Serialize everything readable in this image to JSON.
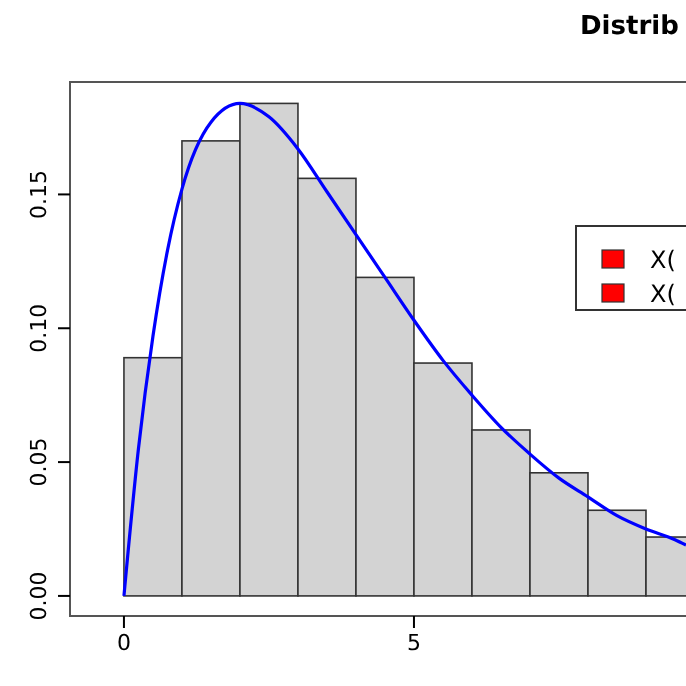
{
  "chart_data": {
    "type": "histogram",
    "title": "Distrib",
    "bins": [
      0,
      1,
      2,
      3,
      4,
      5,
      6,
      7,
      8,
      9,
      10
    ],
    "values": [
      0.089,
      0.17,
      0.184,
      0.156,
      0.119,
      0.087,
      0.062,
      0.046,
      0.032,
      0.022
    ],
    "color": "#d3d3d3",
    "series": [
      {
        "type": "line",
        "color": "#0000ff",
        "x": [
          0,
          0.25,
          0.5,
          0.75,
          1,
          1.5,
          2,
          2.5,
          3,
          3.5,
          4,
          4.5,
          5,
          5.5,
          6,
          6.5,
          7,
          7.5,
          8,
          8.5,
          9,
          9.5,
          9.69
        ],
        "values": [
          0,
          0.055,
          0.097,
          0.129,
          0.152,
          0.177,
          0.184,
          0.179,
          0.167,
          0.151,
          0.135,
          0.119,
          0.103,
          0.088,
          0.075,
          0.063,
          0.053,
          0.044,
          0.037,
          0.03,
          0.025,
          0.021,
          0.019
        ]
      }
    ],
    "annotations": [
      "X(",
      "X("
    ],
    "xlim": [
      -0.93,
      9.69
    ],
    "ylim": [
      -0.0075,
      0.192
    ],
    "xticks": [
      0,
      5
    ],
    "yticks": [
      {
        "value": 0,
        "label": "0.00"
      },
      {
        "value": 0.05,
        "label": "0.05"
      },
      {
        "value": 0.1,
        "label": "0.10"
      },
      {
        "value": 0.15,
        "label": "0.15"
      }
    ],
    "grid": false
  }
}
